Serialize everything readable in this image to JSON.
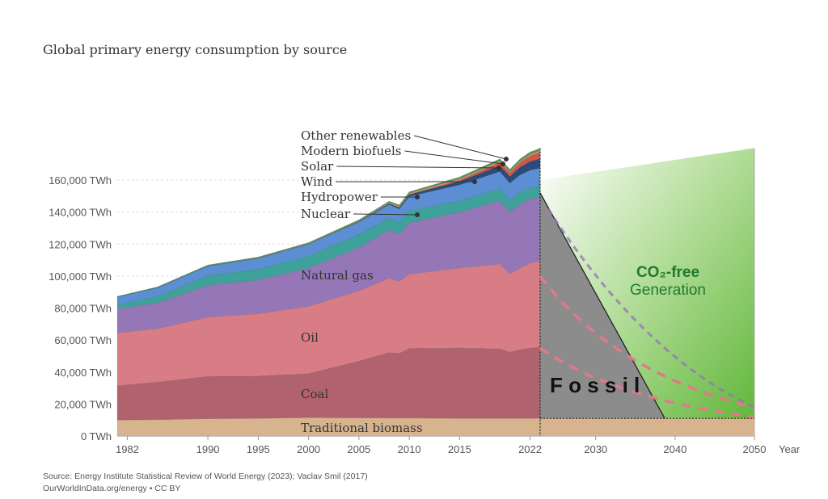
{
  "chart_data": {
    "type": "area",
    "title": "Global primary energy consumption by source",
    "xlabel": "Year",
    "ylabel": "",
    "unit": "TWh",
    "ylim": [
      0,
      160000
    ],
    "xlim_history": [
      1981,
      2023
    ],
    "xlim_projection": [
      2023,
      2050
    ],
    "x_ticks": [
      "1982",
      "1990",
      "1995",
      "2000",
      "2005",
      "2010",
      "2015",
      "2022",
      "2030",
      "2040",
      "2050"
    ],
    "x_tick_values": [
      1982,
      1990,
      1995,
      2000,
      2005,
      2010,
      2015,
      2022,
      2030,
      2040,
      2050
    ],
    "y_ticks": [
      "0 TWh",
      "20,000 TWh",
      "40,000 TWh",
      "60,000 TWh",
      "80,000 TWh",
      "100,000 TWh",
      "120,000 TWh",
      "140,000 TWh",
      "160,000 TWh"
    ],
    "y_tick_values": [
      0,
      20000,
      40000,
      60000,
      80000,
      100000,
      120000,
      140000,
      160000
    ],
    "x": [
      1981,
      1985,
      1990,
      1995,
      2000,
      2005,
      2008,
      2009,
      2010,
      2015,
      2019,
      2020,
      2021,
      2022,
      2023
    ],
    "series": [
      {
        "name": "Traditional biomass",
        "color": "#d8b48e",
        "values": [
          10000,
          10200,
          10800,
          11000,
          11500,
          11300,
          11200,
          11200,
          11200,
          11000,
          11000,
          11000,
          11000,
          11000,
          11000
        ]
      },
      {
        "name": "Coal",
        "color": "#b0636e",
        "values": [
          21500,
          23500,
          26500,
          26500,
          27500,
          35500,
          41000,
          40500,
          43500,
          44000,
          43500,
          41500,
          43000,
          44000,
          44500
        ]
      },
      {
        "name": "Oil",
        "color": "#d87d86",
        "values": [
          33000,
          33500,
          37000,
          39000,
          42000,
          44000,
          46500,
          45000,
          46500,
          50000,
          53000,
          49000,
          51000,
          53000,
          54000
        ]
      },
      {
        "name": "Natural gas",
        "color": "#9577b7",
        "values": [
          15000,
          16000,
          20000,
          21000,
          24000,
          27000,
          30000,
          29500,
          32000,
          35000,
          39500,
          38500,
          40000,
          40000,
          40000
        ]
      },
      {
        "name": "Nuclear",
        "color": "#3fa29a",
        "values": [
          2500,
          4000,
          6000,
          6800,
          7500,
          8000,
          7500,
          7300,
          7600,
          7000,
          7500,
          7200,
          7400,
          7200,
          7000
        ]
      },
      {
        "name": "Hydropower",
        "color": "#5b8ed2",
        "values": [
          5000,
          5500,
          6000,
          6800,
          7500,
          8000,
          8500,
          8500,
          9000,
          10000,
          10800,
          10900,
          10800,
          11000,
          11000
        ]
      },
      {
        "name": "Wind",
        "color": "#2c4a7a",
        "values": [
          0,
          0,
          0,
          50,
          100,
          300,
          600,
          800,
          1100,
          2200,
          3700,
          4100,
          4800,
          5400,
          5800
        ]
      },
      {
        "name": "Solar",
        "color": "#c9594a",
        "values": [
          0,
          0,
          0,
          0,
          0,
          20,
          40,
          60,
          100,
          700,
          2000,
          2300,
          2800,
          3500,
          4000
        ]
      },
      {
        "name": "Modern biofuels",
        "color": "#d98b6a",
        "values": [
          0,
          100,
          150,
          200,
          250,
          400,
          700,
          750,
          800,
          900,
          1000,
          950,
          1000,
          1050,
          1100
        ]
      },
      {
        "name": "Other renewables",
        "color": "#4a9a59",
        "values": [
          300,
          400,
          500,
          550,
          600,
          700,
          800,
          850,
          900,
          1100,
          1250,
          1300,
          1350,
          1400,
          1450
        ]
      }
    ],
    "projection": {
      "co2_free_total": {
        "x": [
          2023,
          2050
        ],
        "values": [
          160000,
          180000
        ]
      },
      "fossil_decline": {
        "x": [
          2023,
          2038.7
        ],
        "values": [
          152000,
          11000
        ]
      },
      "baseline_biomass": 11000,
      "dashed_lines": {
        "line_1": {
          "x": [
            2023,
            2050
          ],
          "values": [
            100000,
            18000
          ]
        },
        "line_2": {
          "x": [
            2023,
            2050
          ],
          "values": [
            55000,
            12000
          ]
        }
      },
      "labels": {
        "co2_free_line1": "CO₂-free",
        "co2_free_line2": "Generation",
        "fossil": "F o s s i l"
      }
    },
    "annotations": [
      "Other renewables",
      "Modern biofuels",
      "Solar",
      "Wind",
      "Hydropower",
      "Nuclear"
    ],
    "legend": "inline labels"
  },
  "source": {
    "line1": "Source: Energy Institute Statistical Review of World Energy (2023); Vaclav Smil (2017)",
    "line2": "OurWorldInData.org/energy • CC BY"
  },
  "colors": {
    "grid": "#dddddd",
    "projection_grey": "#8c8c8c",
    "co2_green_dark": "#62b63f",
    "co2_text": "#1f7a2e",
    "dashed_pink": "#e07a8a"
  }
}
